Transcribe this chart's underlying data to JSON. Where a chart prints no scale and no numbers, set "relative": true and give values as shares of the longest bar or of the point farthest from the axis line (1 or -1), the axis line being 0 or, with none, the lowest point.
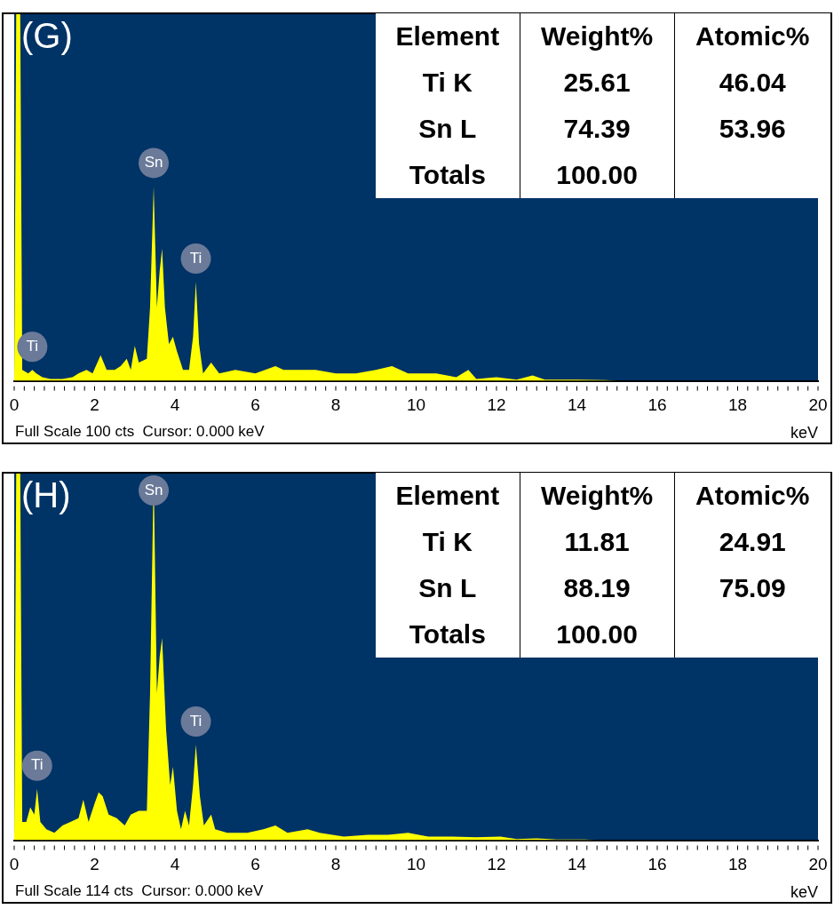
{
  "chart_data": [
    {
      "type": "area",
      "title": "(G)",
      "xlabel": "keV",
      "relative": true,
      "xlim": [
        0,
        20
      ],
      "xticks": [
        0,
        2,
        4,
        6,
        8,
        10,
        12,
        14,
        16,
        18,
        20
      ],
      "grid": false,
      "legend": false,
      "marker": "none",
      "series": [
        {
          "color": "#ffff00",
          "x": [
            0,
            0.05,
            0.15,
            0.2,
            0.35,
            0.45,
            0.55,
            0.7,
            0.9,
            1.2,
            1.45,
            1.6,
            1.8,
            1.95,
            2.15,
            2.3,
            2.5,
            2.65,
            2.8,
            2.9,
            3.0,
            3.1,
            3.3,
            3.38,
            3.47,
            3.55,
            3.62,
            3.68,
            3.75,
            3.85,
            3.95,
            4.05,
            4.2,
            4.35,
            4.45,
            4.52,
            4.6,
            4.7,
            4.9,
            5.1,
            5.5,
            6.0,
            6.5,
            6.7,
            7.0,
            7.5,
            8.0,
            8.5,
            9.0,
            9.4,
            9.8,
            10.5,
            11.0,
            11.3,
            11.5,
            12.0,
            12.5,
            12.9,
            13.2,
            14.0,
            14.7,
            15,
            20
          ],
          "values": [
            0,
            1,
            1,
            0.03,
            0.02,
            0.03,
            0.02,
            0.01,
            0.005,
            0.005,
            0.01,
            0.02,
            0.03,
            0.02,
            0.07,
            0.03,
            0.03,
            0.04,
            0.06,
            0.03,
            0.095,
            0.05,
            0.06,
            0.2,
            0.53,
            0.2,
            0.3,
            0.36,
            0.2,
            0.1,
            0.12,
            0.08,
            0.03,
            0.03,
            0.12,
            0.27,
            0.1,
            0.02,
            0.05,
            0.02,
            0.03,
            0.02,
            0.04,
            0.03,
            0.03,
            0.03,
            0.02,
            0.02,
            0.03,
            0.04,
            0.02,
            0.02,
            0.01,
            0.03,
            0.005,
            0.01,
            0.003,
            0.015,
            0.003,
            0.003,
            0.002,
            0,
            0
          ]
        }
      ],
      "annotations": [
        {
          "text": "Sn",
          "x": 3.47,
          "y": 0.53
        },
        {
          "text": "Ti",
          "x": 4.52,
          "y": 0.27
        },
        {
          "text": "Ti",
          "x": 0.45,
          "y": 0.03
        },
        "Full Scale 100 cts  Cursor: 0.000 keV",
        "Element",
        "Weight%",
        "Atomic%",
        "Ti K",
        "25.61",
        "46.04",
        "Sn L",
        "74.39",
        "53.96",
        "Totals",
        "100.00"
      ]
    },
    {
      "type": "area",
      "title": "(H)",
      "xlabel": "keV",
      "relative": true,
      "xlim": [
        0,
        20
      ],
      "xticks": [
        0,
        2,
        4,
        6,
        8,
        10,
        12,
        14,
        16,
        18,
        20
      ],
      "grid": false,
      "legend": false,
      "marker": "none",
      "series": [
        {
          "color": "#ffff00",
          "x": [
            0,
            0.05,
            0.15,
            0.2,
            0.3,
            0.4,
            0.5,
            0.57,
            0.65,
            0.8,
            1.0,
            1.2,
            1.4,
            1.6,
            1.72,
            1.85,
            2.0,
            2.1,
            2.2,
            2.35,
            2.55,
            2.75,
            2.9,
            3.1,
            3.3,
            3.38,
            3.47,
            3.55,
            3.62,
            3.68,
            3.78,
            3.88,
            3.95,
            4.05,
            4.15,
            4.25,
            4.35,
            4.45,
            4.52,
            4.62,
            4.72,
            4.9,
            5.0,
            5.3,
            5.8,
            6.2,
            6.5,
            6.8,
            7.3,
            7.6,
            8.2,
            8.8,
            9.3,
            9.8,
            10.3,
            10.9,
            11.5,
            12.1,
            12.5,
            13.0,
            13.5,
            14.2,
            14.5,
            20
          ],
          "values": [
            0,
            1,
            1,
            0.05,
            0.05,
            0.09,
            0.07,
            0.14,
            0.05,
            0.03,
            0.02,
            0.04,
            0.05,
            0.06,
            0.11,
            0.05,
            0.1,
            0.13,
            0.12,
            0.07,
            0.06,
            0.04,
            0.07,
            0.08,
            0.08,
            0.4,
            1,
            0.4,
            0.5,
            0.55,
            0.3,
            0.15,
            0.2,
            0.08,
            0.03,
            0.08,
            0.04,
            0.15,
            0.26,
            0.12,
            0.04,
            0.07,
            0.03,
            0.02,
            0.02,
            0.03,
            0.04,
            0.02,
            0.03,
            0.02,
            0.01,
            0.015,
            0.015,
            0.02,
            0.01,
            0.01,
            0.008,
            0.01,
            0.003,
            0.005,
            0.002,
            0.002,
            0,
            0
          ]
        }
      ],
      "annotations": [
        {
          "text": "Sn",
          "x": 3.47,
          "y": 1
        },
        {
          "text": "Ti",
          "x": 4.52,
          "y": 0.26
        },
        {
          "text": "Ti",
          "x": 0.57,
          "y": 0.14
        },
        "Full Scale 114 cts  Cursor: 0.000 keV",
        "Element",
        "Weight%",
        "Atomic%",
        "Ti K",
        "11.81",
        "24.91",
        "Sn L",
        "88.19",
        "75.09",
        "Totals",
        "100.00"
      ]
    }
  ]
}
